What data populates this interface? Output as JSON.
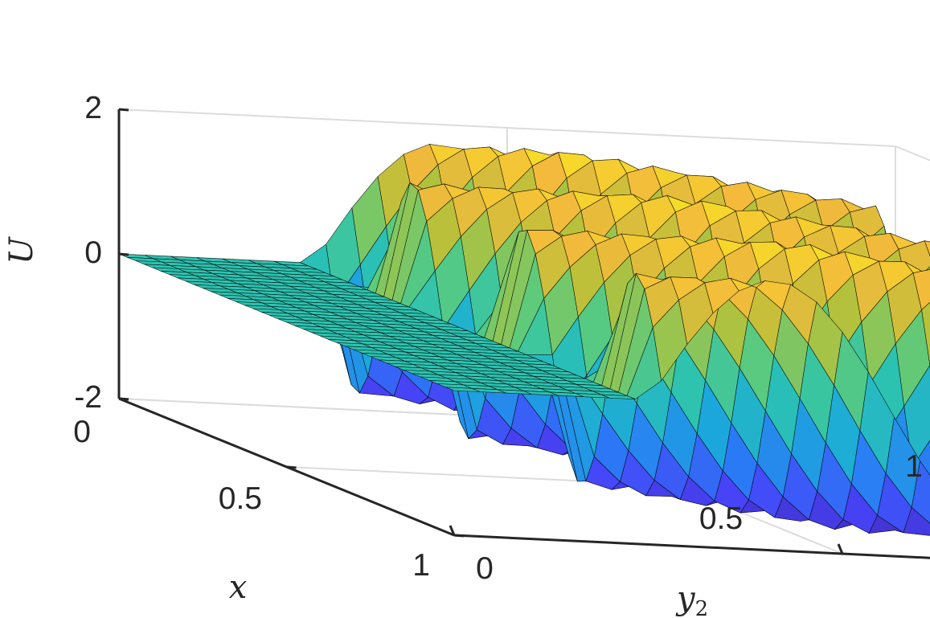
{
  "chart_data": {
    "type": "surface",
    "title": "",
    "xlabel": "x",
    "ylabel": "y",
    "ylabel_subscript": "2",
    "zlabel": "U",
    "xlim": [
      0,
      1
    ],
    "ylim": [
      0,
      1
    ],
    "zlim": [
      -2,
      2
    ],
    "x_ticks": [
      {
        "value": 0,
        "label": "0"
      },
      {
        "value": 0.5,
        "label": "0.5"
      },
      {
        "value": 1,
        "label": "1"
      }
    ],
    "y_ticks": [
      {
        "value": 0,
        "label": "0"
      },
      {
        "value": 0.5,
        "label": "0.5"
      },
      {
        "value": 1,
        "label": "1"
      }
    ],
    "z_ticks": [
      {
        "value": -2,
        "label": "-2"
      },
      {
        "value": 0,
        "label": "0"
      },
      {
        "value": 2,
        "label": "2"
      }
    ],
    "grid": true,
    "colormap": "parula",
    "colormap_colors": [
      "#3e26a8",
      "#4743f8",
      "#2a7cf5",
      "#1ca9db",
      "#2cc3b1",
      "#5cca7c",
      "#b5c13a",
      "#f3ba3b",
      "#f9fb15"
    ],
    "edge_color": "#000000",
    "surface_description_values": {
      "front_plateau_y2_max": 0.25,
      "front_plateau_U": 0,
      "wall_y2_front": 0.25,
      "wall_y2_back": 0.3,
      "wave_periods_along_x": 3
    }
  }
}
